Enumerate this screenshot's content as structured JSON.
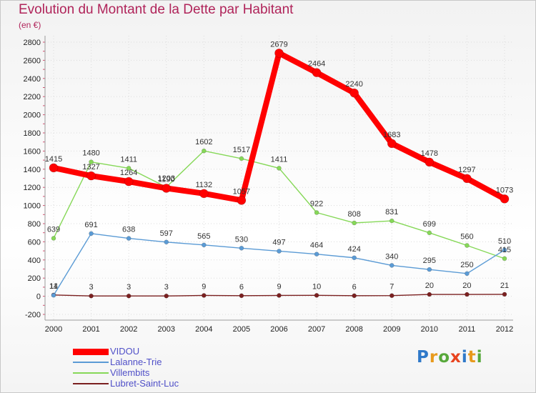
{
  "title": "Evolution du Montant de la Dette par Habitant",
  "subtitle": "(en €)",
  "brand": {
    "text": "Proxiti",
    "colors": [
      "#2f79c9",
      "#e89a1c",
      "#57a83a",
      "#e8441f",
      "#2f79c9",
      "#e89a1c",
      "#57a83a"
    ]
  },
  "chart_data": {
    "type": "line",
    "x": [
      "2000",
      "2001",
      "2002",
      "2003",
      "2004",
      "2005",
      "2006",
      "2007",
      "2008",
      "2009",
      "2010",
      "2011",
      "2012"
    ],
    "ylim": [
      -200,
      2800
    ],
    "yticks": [
      -200,
      0,
      200,
      400,
      600,
      800,
      1000,
      1200,
      1400,
      1600,
      1800,
      2000,
      2200,
      2400,
      2600,
      2800
    ],
    "grid": true,
    "legend": "bottom-left",
    "series": [
      {
        "name": "Lubret-Saint-Luc",
        "color": "#7b2020",
        "values": [
          14,
          3,
          3,
          3,
          9,
          6,
          9,
          10,
          6,
          7,
          20,
          20,
          21
        ]
      },
      {
        "name": "Villembits",
        "color": "#86d858",
        "values": [
          639,
          1480,
          1411,
          1203,
          1602,
          1517,
          1411,
          922,
          808,
          831,
          699,
          560,
          415
        ]
      },
      {
        "name": "Lalanne-Trie",
        "color": "#5b9bd5",
        "values": [
          11,
          691,
          638,
          597,
          565,
          530,
          497,
          464,
          424,
          340,
          295,
          250,
          510
        ]
      },
      {
        "name": "VIDOU",
        "color": "#ff0000",
        "values": [
          1415,
          1327,
          1264,
          1190,
          1132,
          1057,
          2679,
          2464,
          2240,
          1683,
          1478,
          1297,
          1073
        ]
      }
    ]
  }
}
